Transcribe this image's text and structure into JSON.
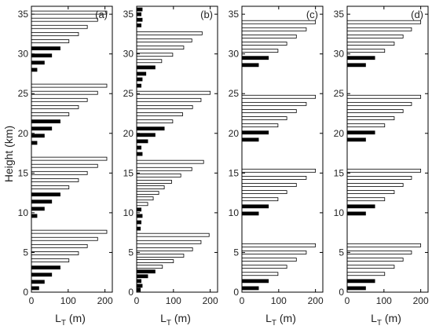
{
  "chart_data": {
    "type": "bar",
    "orientation": "horizontal",
    "ylabel": "Height (km)",
    "xlabel_main": "L",
    "xlabel_sub": "T",
    "xlabel_unit": " (m)",
    "xlim": [
      0,
      220
    ],
    "ylim": [
      0,
      36
    ],
    "xticks": [
      0,
      100,
      200
    ],
    "yticks": [
      0,
      5,
      10,
      15,
      20,
      25,
      30,
      35
    ],
    "panels": [
      {
        "tag": "(a)",
        "bars": [
          {
            "h": 0.5,
            "v": 20,
            "fill": "#000"
          },
          {
            "h": 1.3,
            "v": 35,
            "fill": "#000"
          },
          {
            "h": 2.2,
            "v": 55,
            "fill": "#000"
          },
          {
            "h": 3.1,
            "v": 78,
            "fill": "#000"
          },
          {
            "h": 4.0,
            "v": 102,
            "fill": "#fff"
          },
          {
            "h": 4.9,
            "v": 128,
            "fill": "#fff"
          },
          {
            "h": 5.8,
            "v": 152,
            "fill": "#fff"
          },
          {
            "h": 6.7,
            "v": 180,
            "fill": "#fff"
          },
          {
            "h": 7.6,
            "v": 205,
            "fill": "#fff"
          },
          {
            "h": 9.6,
            "v": 15,
            "fill": "#000"
          },
          {
            "h": 10.5,
            "v": 35,
            "fill": "#000"
          },
          {
            "h": 11.4,
            "v": 55,
            "fill": "#000"
          },
          {
            "h": 12.3,
            "v": 78,
            "fill": "#000"
          },
          {
            "h": 13.2,
            "v": 102,
            "fill": "#fff"
          },
          {
            "h": 14.1,
            "v": 128,
            "fill": "#fff"
          },
          {
            "h": 15.0,
            "v": 152,
            "fill": "#fff"
          },
          {
            "h": 15.9,
            "v": 180,
            "fill": "#fff"
          },
          {
            "h": 16.8,
            "v": 205,
            "fill": "#fff"
          },
          {
            "h": 18.8,
            "v": 15,
            "fill": "#000"
          },
          {
            "h": 19.7,
            "v": 35,
            "fill": "#000"
          },
          {
            "h": 20.6,
            "v": 55,
            "fill": "#000"
          },
          {
            "h": 21.5,
            "v": 78,
            "fill": "#000"
          },
          {
            "h": 22.4,
            "v": 102,
            "fill": "#fff"
          },
          {
            "h": 23.3,
            "v": 128,
            "fill": "#fff"
          },
          {
            "h": 24.2,
            "v": 152,
            "fill": "#fff"
          },
          {
            "h": 25.1,
            "v": 180,
            "fill": "#fff"
          },
          {
            "h": 26.0,
            "v": 205,
            "fill": "#fff"
          },
          {
            "h": 28.0,
            "v": 15,
            "fill": "#000"
          },
          {
            "h": 28.9,
            "v": 35,
            "fill": "#000"
          },
          {
            "h": 29.8,
            "v": 55,
            "fill": "#000"
          },
          {
            "h": 30.7,
            "v": 78,
            "fill": "#000"
          },
          {
            "h": 31.6,
            "v": 102,
            "fill": "#fff"
          },
          {
            "h": 32.5,
            "v": 128,
            "fill": "#fff"
          },
          {
            "h": 33.4,
            "v": 152,
            "fill": "#fff"
          },
          {
            "h": 34.3,
            "v": 180,
            "fill": "#fff"
          },
          {
            "h": 35.2,
            "v": 205,
            "fill": "#fff"
          }
        ]
      },
      {
        "tag": "(b)",
        "bars": [
          {
            "h": 0.3,
            "v": 10,
            "fill": "#000"
          },
          {
            "h": 0.8,
            "v": 15,
            "fill": "#000"
          },
          {
            "h": 1.4,
            "v": 12,
            "fill": "#000"
          },
          {
            "h": 2.0,
            "v": 30,
            "fill": "#000"
          },
          {
            "h": 2.6,
            "v": 50,
            "fill": "#000"
          },
          {
            "h": 3.2,
            "v": 70,
            "fill": "#fff"
          },
          {
            "h": 3.9,
            "v": 100,
            "fill": "#fff"
          },
          {
            "h": 4.6,
            "v": 128,
            "fill": "#fff"
          },
          {
            "h": 5.4,
            "v": 152,
            "fill": "#fff"
          },
          {
            "h": 6.3,
            "v": 175,
            "fill": "#fff"
          },
          {
            "h": 7.2,
            "v": 197,
            "fill": "#fff"
          },
          {
            "h": 8.0,
            "v": 10,
            "fill": "#000"
          },
          {
            "h": 8.8,
            "v": 12,
            "fill": "#000"
          },
          {
            "h": 9.6,
            "v": 15,
            "fill": "#000"
          },
          {
            "h": 10.4,
            "v": 12,
            "fill": "#000"
          },
          {
            "h": 11.1,
            "v": 30,
            "fill": "#fff"
          },
          {
            "h": 11.8,
            "v": 45,
            "fill": "#fff"
          },
          {
            "h": 12.5,
            "v": 60,
            "fill": "#fff"
          },
          {
            "h": 13.2,
            "v": 75,
            "fill": "#fff"
          },
          {
            "h": 13.9,
            "v": 95,
            "fill": "#fff"
          },
          {
            "h": 14.7,
            "v": 120,
            "fill": "#fff"
          },
          {
            "h": 15.5,
            "v": 150,
            "fill": "#fff"
          },
          {
            "h": 16.4,
            "v": 182,
            "fill": "#fff"
          },
          {
            "h": 17.4,
            "v": 15,
            "fill": "#000"
          },
          {
            "h": 18.2,
            "v": 12,
            "fill": "#000"
          },
          {
            "h": 19.0,
            "v": 30,
            "fill": "#000"
          },
          {
            "h": 19.8,
            "v": 50,
            "fill": "#000"
          },
          {
            "h": 20.6,
            "v": 75,
            "fill": "#000"
          },
          {
            "h": 21.5,
            "v": 98,
            "fill": "#fff"
          },
          {
            "h": 22.4,
            "v": 125,
            "fill": "#fff"
          },
          {
            "h": 23.3,
            "v": 152,
            "fill": "#fff"
          },
          {
            "h": 24.2,
            "v": 175,
            "fill": "#fff"
          },
          {
            "h": 25.1,
            "v": 200,
            "fill": "#fff"
          },
          {
            "h": 26.0,
            "v": 12,
            "fill": "#000"
          },
          {
            "h": 26.8,
            "v": 15,
            "fill": "#000"
          },
          {
            "h": 27.5,
            "v": 25,
            "fill": "#000"
          },
          {
            "h": 28.3,
            "v": 50,
            "fill": "#000"
          },
          {
            "h": 29.1,
            "v": 68,
            "fill": "#fff"
          },
          {
            "h": 29.9,
            "v": 98,
            "fill": "#fff"
          },
          {
            "h": 30.8,
            "v": 128,
            "fill": "#fff"
          },
          {
            "h": 31.7,
            "v": 150,
            "fill": "#fff"
          },
          {
            "h": 32.6,
            "v": 178,
            "fill": "#fff"
          },
          {
            "h": 33.6,
            "v": 12,
            "fill": "#000"
          },
          {
            "h": 34.3,
            "v": 15,
            "fill": "#000"
          },
          {
            "h": 35.0,
            "v": 12,
            "fill": "#000"
          },
          {
            "h": 35.6,
            "v": 15,
            "fill": "#000"
          }
        ]
      },
      {
        "tag": "(c)",
        "bars": [
          {
            "h": 0.5,
            "v": 45,
            "fill": "#000"
          },
          {
            "h": 1.4,
            "v": 72,
            "fill": "#000"
          },
          {
            "h": 2.3,
            "v": 98,
            "fill": "#fff"
          },
          {
            "h": 3.2,
            "v": 122,
            "fill": "#fff"
          },
          {
            "h": 4.1,
            "v": 148,
            "fill": "#fff"
          },
          {
            "h": 5.0,
            "v": 175,
            "fill": "#fff"
          },
          {
            "h": 5.9,
            "v": 200,
            "fill": "#fff"
          },
          {
            "h": 9.9,
            "v": 45,
            "fill": "#000"
          },
          {
            "h": 10.8,
            "v": 72,
            "fill": "#000"
          },
          {
            "h": 11.7,
            "v": 98,
            "fill": "#fff"
          },
          {
            "h": 12.6,
            "v": 122,
            "fill": "#fff"
          },
          {
            "h": 13.5,
            "v": 148,
            "fill": "#fff"
          },
          {
            "h": 14.4,
            "v": 175,
            "fill": "#fff"
          },
          {
            "h": 15.3,
            "v": 200,
            "fill": "#fff"
          },
          {
            "h": 19.2,
            "v": 45,
            "fill": "#000"
          },
          {
            "h": 20.1,
            "v": 72,
            "fill": "#000"
          },
          {
            "h": 21.0,
            "v": 98,
            "fill": "#fff"
          },
          {
            "h": 21.9,
            "v": 122,
            "fill": "#fff"
          },
          {
            "h": 22.8,
            "v": 148,
            "fill": "#fff"
          },
          {
            "h": 23.7,
            "v": 175,
            "fill": "#fff"
          },
          {
            "h": 24.6,
            "v": 200,
            "fill": "#fff"
          },
          {
            "h": 28.6,
            "v": 45,
            "fill": "#000"
          },
          {
            "h": 29.5,
            "v": 72,
            "fill": "#000"
          },
          {
            "h": 30.4,
            "v": 98,
            "fill": "#fff"
          },
          {
            "h": 31.3,
            "v": 122,
            "fill": "#fff"
          },
          {
            "h": 32.2,
            "v": 148,
            "fill": "#fff"
          },
          {
            "h": 33.1,
            "v": 175,
            "fill": "#fff"
          },
          {
            "h": 34.0,
            "v": 200,
            "fill": "#fff"
          }
        ]
      },
      {
        "tag": "(d)",
        "bars": [
          {
            "h": 0.5,
            "v": 50,
            "fill": "#000"
          },
          {
            "h": 1.4,
            "v": 75,
            "fill": "#000"
          },
          {
            "h": 2.3,
            "v": 102,
            "fill": "#fff"
          },
          {
            "h": 3.2,
            "v": 128,
            "fill": "#fff"
          },
          {
            "h": 4.1,
            "v": 152,
            "fill": "#fff"
          },
          {
            "h": 5.0,
            "v": 175,
            "fill": "#fff"
          },
          {
            "h": 5.9,
            "v": 200,
            "fill": "#fff"
          },
          {
            "h": 9.9,
            "v": 50,
            "fill": "#000"
          },
          {
            "h": 10.8,
            "v": 75,
            "fill": "#000"
          },
          {
            "h": 11.7,
            "v": 102,
            "fill": "#fff"
          },
          {
            "h": 12.6,
            "v": 128,
            "fill": "#fff"
          },
          {
            "h": 13.5,
            "v": 152,
            "fill": "#fff"
          },
          {
            "h": 14.4,
            "v": 175,
            "fill": "#fff"
          },
          {
            "h": 15.3,
            "v": 200,
            "fill": "#fff"
          },
          {
            "h": 19.2,
            "v": 50,
            "fill": "#000"
          },
          {
            "h": 20.1,
            "v": 75,
            "fill": "#000"
          },
          {
            "h": 21.0,
            "v": 102,
            "fill": "#fff"
          },
          {
            "h": 21.9,
            "v": 128,
            "fill": "#fff"
          },
          {
            "h": 22.8,
            "v": 152,
            "fill": "#fff"
          },
          {
            "h": 23.7,
            "v": 175,
            "fill": "#fff"
          },
          {
            "h": 24.6,
            "v": 200,
            "fill": "#fff"
          },
          {
            "h": 28.6,
            "v": 50,
            "fill": "#000"
          },
          {
            "h": 29.5,
            "v": 75,
            "fill": "#000"
          },
          {
            "h": 30.4,
            "v": 102,
            "fill": "#fff"
          },
          {
            "h": 31.3,
            "v": 128,
            "fill": "#fff"
          },
          {
            "h": 32.2,
            "v": 152,
            "fill": "#fff"
          },
          {
            "h": 33.1,
            "v": 175,
            "fill": "#fff"
          },
          {
            "h": 34.0,
            "v": 200,
            "fill": "#fff"
          }
        ]
      }
    ]
  }
}
